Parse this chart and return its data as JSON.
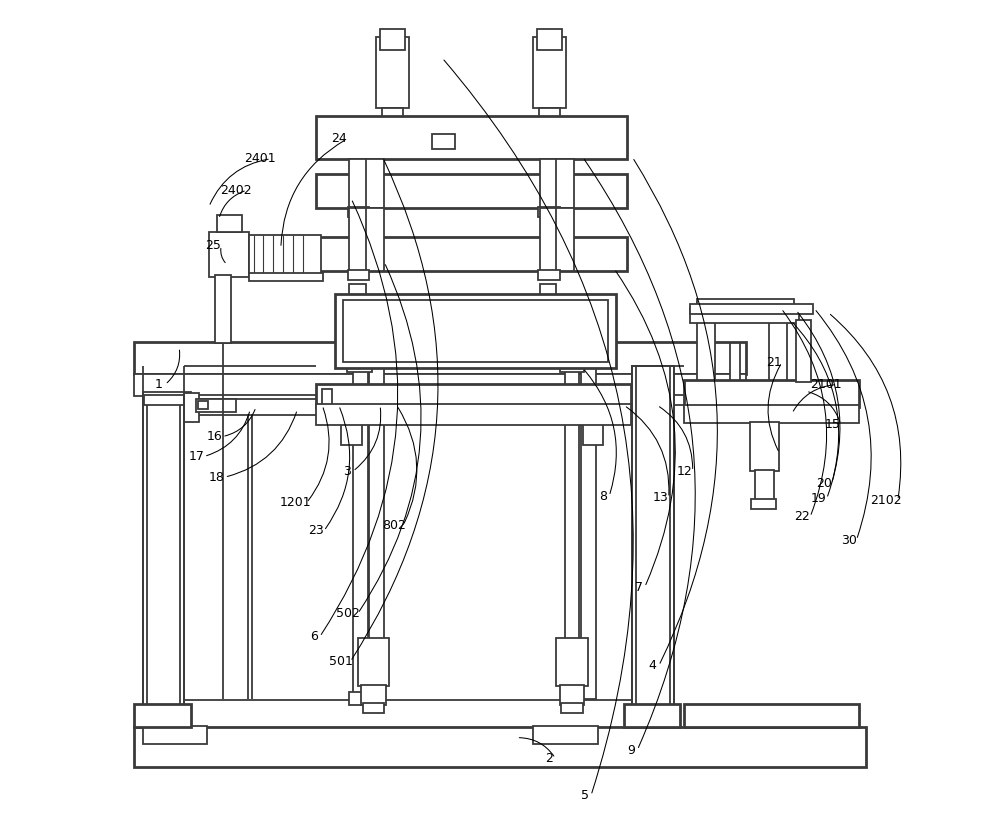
{
  "bg_color": "#ffffff",
  "lc": "#3a3a3a",
  "lw": 1.3,
  "tlw": 2.0,
  "label_fs": 9,
  "labels_data": {
    "1": [
      0.083,
      0.535,
      0.112,
      0.58
    ],
    "2": [
      0.555,
      0.083,
      0.52,
      0.108
    ],
    "3": [
      0.31,
      0.43,
      0.355,
      0.51
    ],
    "4": [
      0.68,
      0.195,
      0.66,
      0.81
    ],
    "5": [
      0.598,
      0.038,
      0.43,
      0.93
    ],
    "6": [
      0.27,
      0.23,
      0.32,
      0.76
    ],
    "7": [
      0.663,
      0.29,
      0.638,
      0.675
    ],
    "8": [
      0.62,
      0.4,
      0.6,
      0.555
    ],
    "9": [
      0.654,
      0.093,
      0.6,
      0.81
    ],
    "12": [
      0.714,
      0.43,
      0.69,
      0.51
    ],
    "13": [
      0.685,
      0.398,
      0.65,
      0.51
    ],
    "15": [
      0.893,
      0.487,
      0.87,
      0.527
    ],
    "16": [
      0.145,
      0.472,
      0.205,
      0.508
    ],
    "17": [
      0.123,
      0.448,
      0.198,
      0.505
    ],
    "18": [
      0.148,
      0.423,
      0.255,
      0.505
    ],
    "19": [
      0.876,
      0.397,
      0.858,
      0.625
    ],
    "20": [
      0.882,
      0.415,
      0.852,
      0.612
    ],
    "21": [
      0.822,
      0.562,
      0.838,
      0.452
    ],
    "22": [
      0.856,
      0.375,
      0.84,
      0.627
    ],
    "23": [
      0.268,
      0.358,
      0.305,
      0.51
    ],
    "24": [
      0.296,
      0.832,
      0.235,
      0.7
    ],
    "25": [
      0.144,
      0.703,
      0.17,
      0.68
    ],
    "30": [
      0.912,
      0.347,
      0.88,
      0.627
    ],
    "501": [
      0.293,
      0.2,
      0.358,
      0.81
    ],
    "502": [
      0.302,
      0.258,
      0.36,
      0.683
    ],
    "802": [
      0.357,
      0.365,
      0.375,
      0.51
    ],
    "1201": [
      0.233,
      0.392,
      0.285,
      0.51
    ],
    "2101": [
      0.875,
      0.535,
      0.853,
      0.5
    ],
    "2102": [
      0.948,
      0.395,
      0.897,
      0.622
    ],
    "2401": [
      0.19,
      0.808,
      0.148,
      0.75
    ],
    "2402": [
      0.161,
      0.77,
      0.16,
      0.735
    ]
  }
}
